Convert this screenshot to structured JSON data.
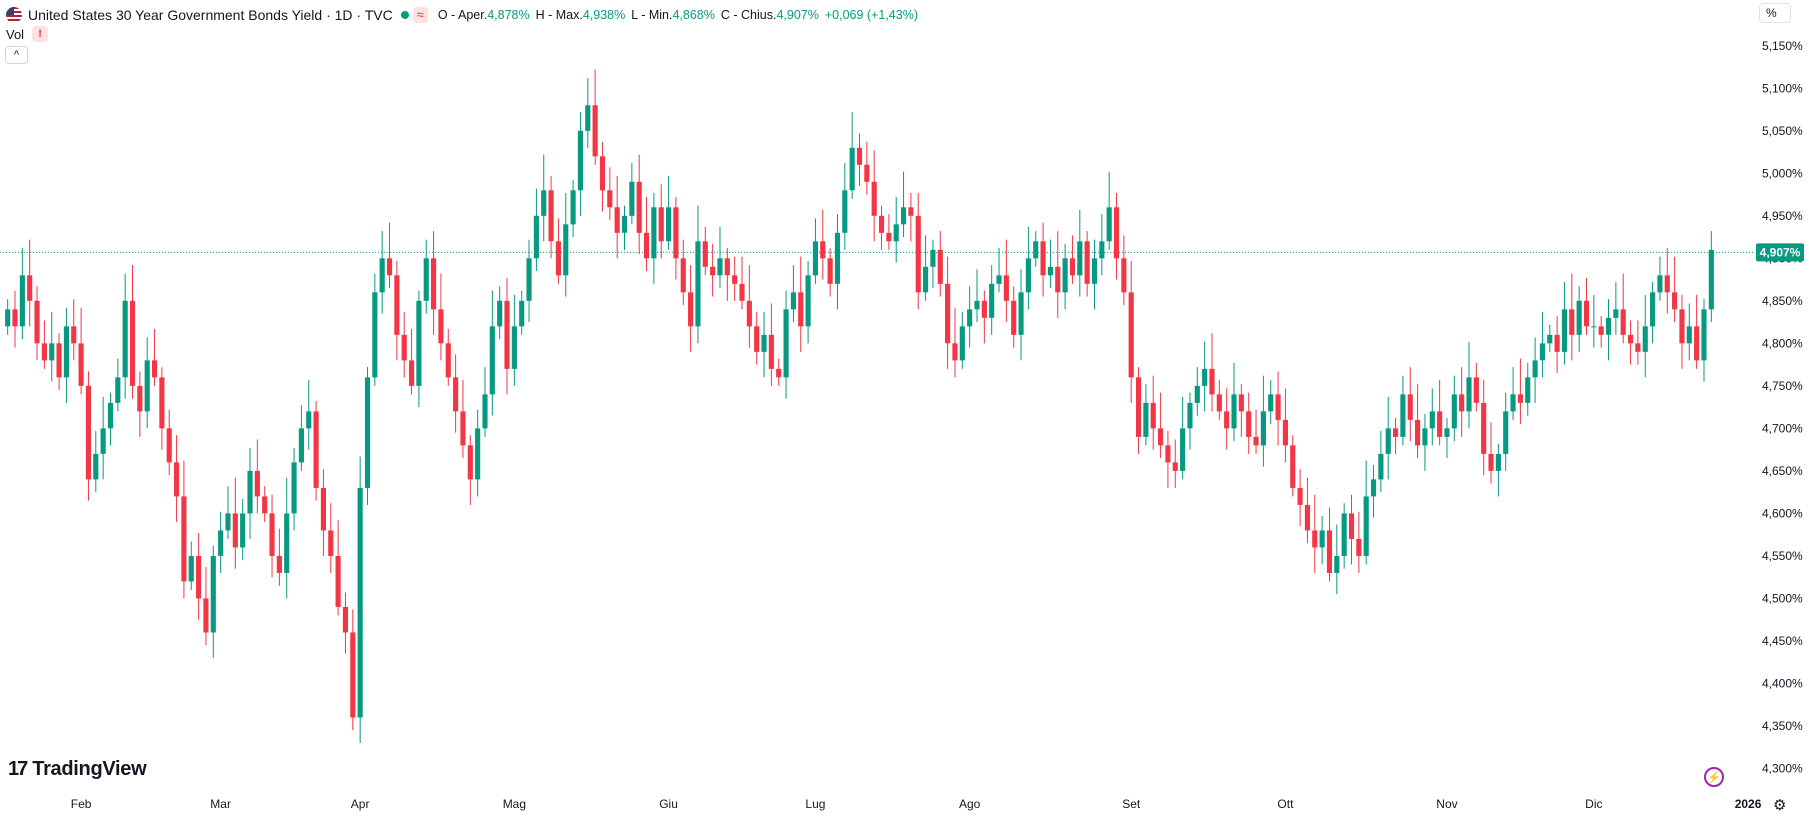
{
  "header": {
    "title": "United States 30 Year Government Bonds Yield · 1D · TVC",
    "wave_symbol": "≈",
    "ohlc": [
      {
        "key": "O - Aper.",
        "value": "4,878%"
      },
      {
        "key": "H - Max.",
        "value": "4,938%"
      },
      {
        "key": "L - Min.",
        "value": "4,868%"
      },
      {
        "key": "C - Chius.",
        "value": "4,907%"
      },
      {
        "key": "",
        "value": "+0,069 (+1,43%)"
      }
    ],
    "vol_label": "Vol",
    "warn_symbol": "!",
    "collapse_symbol": "^",
    "pct_button": "%",
    "brand": "TradingView",
    "brand_mark": "17",
    "bolt_symbol": "⚡",
    "settings_symbol": "⚙"
  },
  "colors": {
    "up": "#089981",
    "down": "#f23645",
    "grid": "#ffffff",
    "axis_text": "#131722",
    "last_price_line": "#089981"
  },
  "chart_data": {
    "type": "candlestick",
    "title": "United States 30 Year Government Bonds Yield",
    "interval": "1D",
    "source": "TVC",
    "y_unit": "%",
    "ylim": [
      4.29,
      5.165
    ],
    "y_ticks": [
      4.3,
      4.35,
      4.4,
      4.45,
      4.5,
      4.55,
      4.6,
      4.65,
      4.7,
      4.75,
      4.8,
      4.85,
      4.9,
      4.95,
      5.0,
      5.05,
      5.1,
      5.15
    ],
    "y_tick_labels": [
      "4,300%",
      "4,350%",
      "4,400%",
      "4,450%",
      "4,500%",
      "4,550%",
      "4,600%",
      "4,650%",
      "4,700%",
      "4,750%",
      "4,800%",
      "4,850%",
      "4,900%",
      "4,950%",
      "5,000%",
      "5,050%",
      "5,100%",
      "5,150%"
    ],
    "x_labels": [
      {
        "label": "Feb",
        "index": 10
      },
      {
        "label": "Mar",
        "index": 29
      },
      {
        "label": "Apr",
        "index": 48
      },
      {
        "label": "Mag",
        "index": 69
      },
      {
        "label": "Giu",
        "index": 90
      },
      {
        "label": "Lug",
        "index": 110
      },
      {
        "label": "Ago",
        "index": 131
      },
      {
        "label": "Set",
        "index": 153
      },
      {
        "label": "Ott",
        "index": 174
      },
      {
        "label": "Nov",
        "index": 196
      },
      {
        "label": "Dic",
        "index": 216
      },
      {
        "label": "2026",
        "index": 237
      }
    ],
    "last_price": 4.907,
    "last_price_label": "4,907%",
    "closes": [
      4.84,
      4.82,
      4.88,
      4.85,
      4.8,
      4.78,
      4.8,
      4.76,
      4.82,
      4.8,
      4.75,
      4.64,
      4.67,
      4.7,
      4.73,
      4.76,
      4.85,
      4.75,
      4.72,
      4.78,
      4.76,
      4.7,
      4.66,
      4.62,
      4.52,
      4.55,
      4.5,
      4.46,
      4.55,
      4.58,
      4.6,
      4.56,
      4.6,
      4.65,
      4.62,
      4.6,
      4.55,
      4.53,
      4.6,
      4.66,
      4.7,
      4.72,
      4.63,
      4.58,
      4.55,
      4.49,
      4.46,
      4.36,
      4.63,
      4.76,
      4.86,
      4.9,
      4.88,
      4.81,
      4.78,
      4.75,
      4.85,
      4.9,
      4.84,
      4.8,
      4.76,
      4.72,
      4.68,
      4.64,
      4.7,
      4.74,
      4.82,
      4.85,
      4.77,
      4.82,
      4.85,
      4.9,
      4.95,
      4.98,
      4.92,
      4.88,
      4.94,
      4.98,
      5.05,
      5.08,
      5.02,
      4.98,
      4.96,
      4.93,
      4.95,
      4.99,
      4.93,
      4.9,
      4.96,
      4.92,
      4.96,
      4.9,
      4.86,
      4.82,
      4.92,
      4.89,
      4.88,
      4.9,
      4.88,
      4.87,
      4.85,
      4.82,
      4.79,
      4.81,
      4.77,
      4.76,
      4.84,
      4.86,
      4.82,
      4.88,
      4.92,
      4.9,
      4.87,
      4.93,
      4.98,
      5.03,
      5.01,
      4.99,
      4.95,
      4.93,
      4.92,
      4.94,
      4.96,
      4.95,
      4.86,
      4.89,
      4.91,
      4.87,
      4.8,
      4.78,
      4.82,
      4.84,
      4.85,
      4.83,
      4.87,
      4.88,
      4.85,
      4.81,
      4.86,
      4.9,
      4.92,
      4.88,
      4.89,
      4.86,
      4.9,
      4.88,
      4.92,
      4.87,
      4.9,
      4.92,
      4.96,
      4.9,
      4.86,
      4.76,
      4.69,
      4.73,
      4.7,
      4.68,
      4.66,
      4.65,
      4.7,
      4.73,
      4.75,
      4.77,
      4.74,
      4.72,
      4.7,
      4.74,
      4.72,
      4.69,
      4.68,
      4.72,
      4.74,
      4.71,
      4.68,
      4.63,
      4.61,
      4.58,
      4.56,
      4.58,
      4.53,
      4.55,
      4.6,
      4.57,
      4.55,
      4.62,
      4.64,
      4.67,
      4.7,
      4.69,
      4.74,
      4.71,
      4.68,
      4.7,
      4.72,
      4.69,
      4.7,
      4.74,
      4.72,
      4.76,
      4.73,
      4.67,
      4.65,
      4.67,
      4.72,
      4.74,
      4.73,
      4.76,
      4.78,
      4.8,
      4.81,
      4.79,
      4.84,
      4.81,
      4.85,
      4.82,
      4.82,
      4.81,
      4.83,
      4.84,
      4.81,
      4.8,
      4.79,
      4.82,
      4.86,
      4.88,
      4.86,
      4.84,
      4.8,
      4.82,
      4.78,
      4.84,
      4.91
    ]
  }
}
